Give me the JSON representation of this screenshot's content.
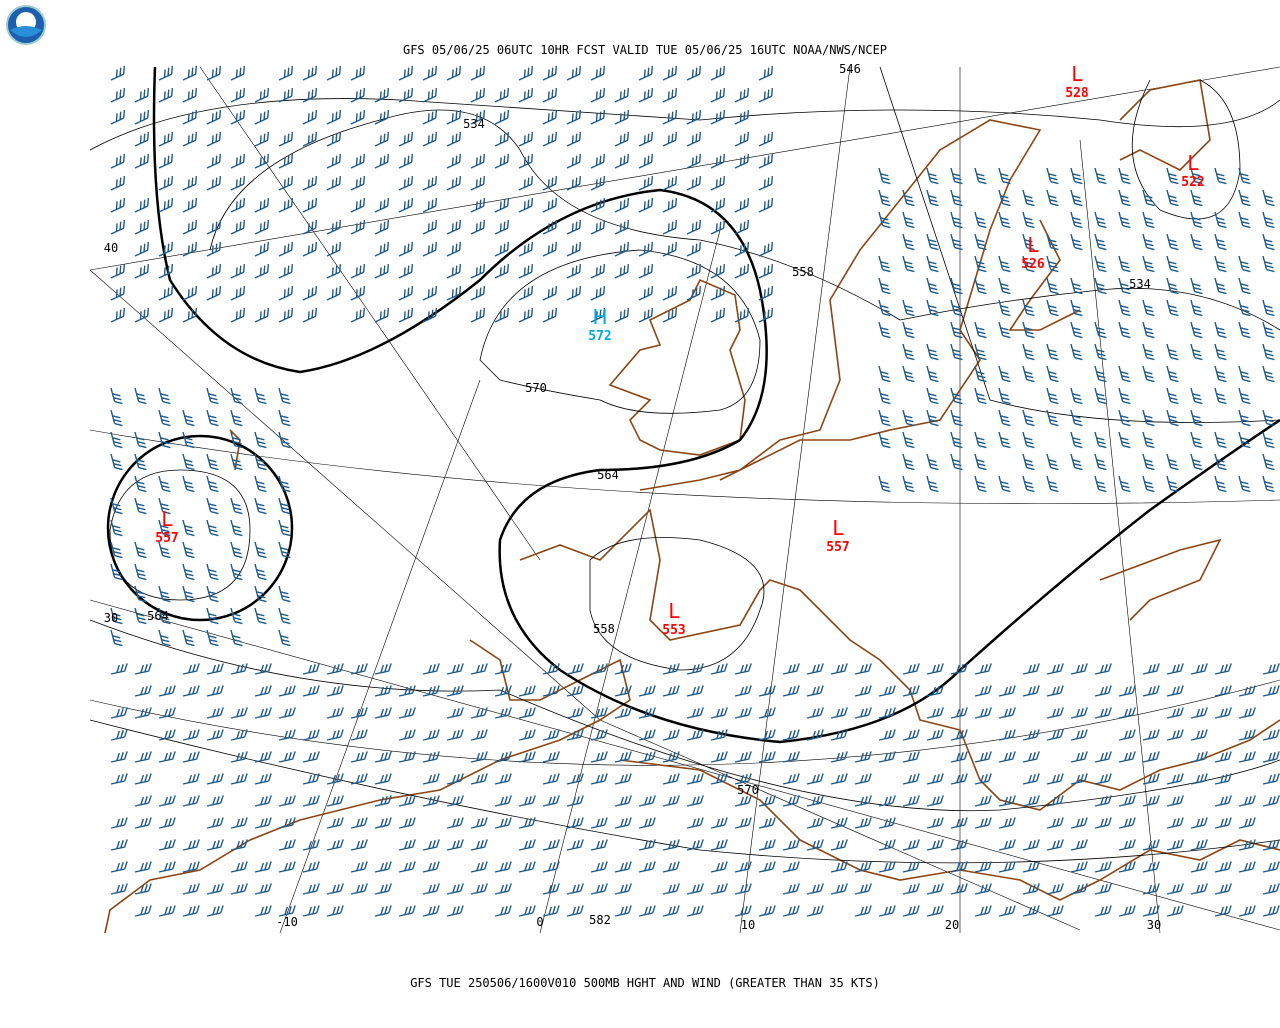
{
  "header": {
    "title": "GFS 05/06/25 06UTC 10HR FCST VALID TUE 05/06/25 16UTC NOAA/NWS/NCEP"
  },
  "centers": [
    {
      "label": "L",
      "value": 528,
      "color": "#ff0000"
    },
    {
      "label": "L",
      "value": 522,
      "color": "#ff0000"
    },
    {
      "label": "L",
      "value": 526,
      "color": "#ff0000"
    },
    {
      "label": "H",
      "value": 572,
      "color": "#00aadd"
    },
    {
      "label": "L",
      "value": 557,
      "color": "#ff0000"
    },
    {
      "label": "L",
      "value": 553,
      "color": "#ff0000"
    },
    {
      "label": "L",
      "value": 557,
      "color": "#ff0000"
    }
  ],
  "contour_labels": [
    546,
    534,
    558,
    534,
    570,
    564,
    558,
    564,
    570,
    582
  ],
  "grid_labels": [
    40,
    30,
    -10,
    0,
    10,
    20,
    30
  ],
  "footer": "GFS TUE 250506/1600V010 500MB HGHT AND WIND (GREATER THAN 35 KTS)"
}
